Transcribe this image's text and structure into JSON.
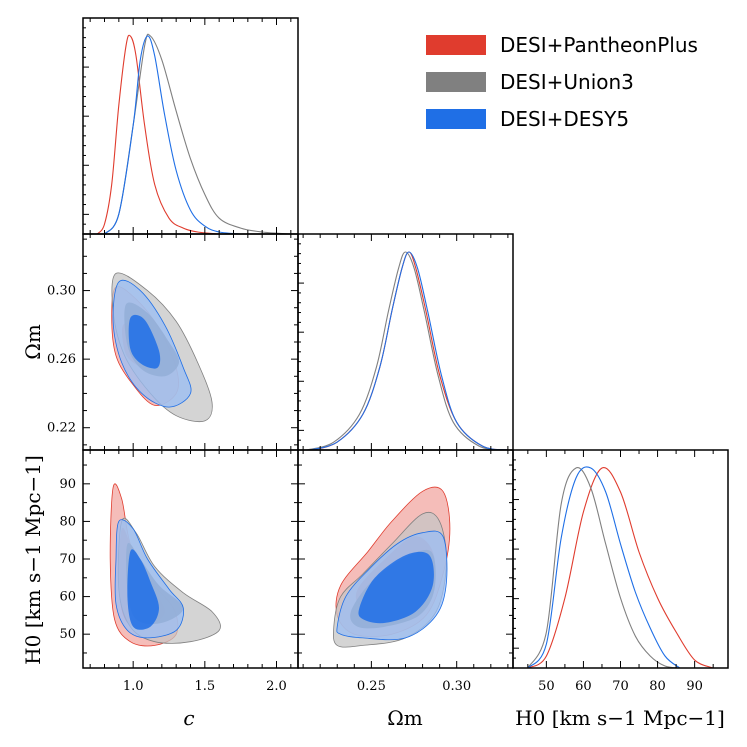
{
  "legend": [
    {
      "label": "DESI+PantheonPlus",
      "color": "#e03c2e"
    },
    {
      "label": "DESI+Union3",
      "color": "#808080"
    },
    {
      "label": "DESI+DESY5",
      "color": "#1f6fe6"
    }
  ],
  "chart_data": {
    "type": "triangle",
    "title": "",
    "parameters": [
      {
        "key": "c",
        "label": "c",
        "range": [
          0.65,
          2.15
        ],
        "ticks": [
          1.0,
          1.5,
          2.0
        ],
        "tick_labels": [
          "1.0",
          "1.5",
          "2.0"
        ]
      },
      {
        "key": "Om",
        "label": "Ωm",
        "range": [
          0.207,
          0.333
        ],
        "ticks": [
          0.22,
          0.26,
          0.3
        ],
        "tick_labels": [
          "0.22",
          "0.26",
          "0.30"
        ],
        "x_ticks": [
          0.25,
          0.3
        ],
        "x_tick_labels": [
          "0.25",
          "0.30"
        ]
      },
      {
        "key": "H0",
        "label": "H0 [km s−1 Mpc−1]",
        "range": [
          41,
          99
        ],
        "ticks": [
          50,
          60,
          70,
          80,
          90
        ],
        "tick_labels": [
          "50",
          "60",
          "70",
          "80",
          "90"
        ]
      }
    ],
    "axis_labels": {
      "x": [
        "c",
        "Ωm",
        "H0 [km s−1 Mpc−1]"
      ],
      "y": [
        "Ωm",
        "H0 [km s−1 Mpc−1]"
      ]
    },
    "series": [
      {
        "name": "DESI+PantheonPlus",
        "color": "#e03c2e",
        "marginals": {
          "c": {
            "x": [
              0.75,
              0.8,
              0.85,
              0.9,
              0.95,
              0.98,
              1.02,
              1.08,
              1.15,
              1.25,
              1.35,
              1.45,
              1.6
            ],
            "y": [
              0.0,
              0.05,
              0.25,
              0.65,
              0.95,
              1.0,
              0.9,
              0.55,
              0.25,
              0.08,
              0.03,
              0.01,
              0.0
            ]
          },
          "Om": {
            "x": [
              0.215,
              0.23,
              0.245,
              0.255,
              0.262,
              0.268,
              0.272,
              0.276,
              0.282,
              0.29,
              0.3,
              0.315,
              0.33
            ],
            "y": [
              0.0,
              0.04,
              0.18,
              0.42,
              0.7,
              0.92,
              1.0,
              0.92,
              0.7,
              0.38,
              0.14,
              0.02,
              0.0
            ]
          },
          "H0": {
            "x": [
              45,
              50,
              55,
              60,
              65,
              70,
              75,
              80,
              85,
              90,
              95
            ],
            "y": [
              0.0,
              0.06,
              0.35,
              0.78,
              1.0,
              0.88,
              0.58,
              0.35,
              0.18,
              0.04,
              0.0
            ]
          }
        },
        "contours": {
          "c-Om": {
            "outer": [
              [
                0.88,
                0.302
              ],
              [
                1.02,
                0.295
              ],
              [
                1.18,
                0.278
              ],
              [
                1.3,
                0.255
              ],
              [
                1.3,
                0.24
              ],
              [
                1.15,
                0.233
              ],
              [
                1.0,
                0.245
              ],
              [
                0.88,
                0.262
              ],
              [
                0.85,
                0.285
              ]
            ],
            "inner": [
              [
                0.93,
                0.28
              ],
              [
                1.05,
                0.279
              ],
              [
                1.12,
                0.265
              ],
              [
                1.1,
                0.255
              ],
              [
                1.0,
                0.258
              ],
              [
                0.94,
                0.265
              ]
            ]
          },
          "c-H0": {
            "outer": [
              [
                0.86,
                89
              ],
              [
                0.92,
                86
              ],
              [
                0.98,
                74
              ],
              [
                1.1,
                65
              ],
              [
                1.28,
                57
              ],
              [
                1.3,
                50
              ],
              [
                1.15,
                47
              ],
              [
                0.98,
                48
              ],
              [
                0.87,
                54
              ],
              [
                0.84,
                70
              ]
            ],
            "inner": [
              [
                0.92,
                78
              ],
              [
                1.0,
                72
              ],
              [
                1.12,
                63
              ],
              [
                1.22,
                56
              ],
              [
                1.1,
                52
              ],
              [
                0.96,
                53
              ],
              [
                0.9,
                62
              ]
            ]
          },
          "Om-H0": {
            "outer": [
              [
                0.232,
                63
              ],
              [
                0.248,
                72
              ],
              [
                0.262,
                80
              ],
              [
                0.28,
                88
              ],
              [
                0.292,
                88
              ],
              [
                0.296,
                78
              ],
              [
                0.292,
                66
              ],
              [
                0.282,
                55
              ],
              [
                0.262,
                50
              ],
              [
                0.24,
                50
              ],
              [
                0.23,
                55
              ]
            ],
            "inner": [
              [
                0.242,
                62
              ],
              [
                0.258,
                70
              ],
              [
                0.275,
                76
              ],
              [
                0.286,
                72
              ],
              [
                0.286,
                63
              ],
              [
                0.276,
                56
              ],
              [
                0.258,
                54
              ],
              [
                0.244,
                57
              ]
            ]
          }
        }
      },
      {
        "name": "DESI+Union3",
        "color": "#808080",
        "marginals": {
          "c": {
            "x": [
              0.8,
              0.9,
              1.0,
              1.08,
              1.12,
              1.2,
              1.3,
              1.4,
              1.5,
              1.6,
              1.75,
              1.9,
              2.1
            ],
            "y": [
              0.0,
              0.1,
              0.55,
              0.95,
              1.0,
              0.88,
              0.62,
              0.38,
              0.2,
              0.08,
              0.03,
              0.01,
              0.0
            ]
          },
          "Om": {
            "x": [
              0.212,
              0.228,
              0.243,
              0.253,
              0.26,
              0.266,
              0.27,
              0.275,
              0.281,
              0.289,
              0.298,
              0.313,
              0.328
            ],
            "y": [
              0.0,
              0.04,
              0.18,
              0.42,
              0.7,
              0.92,
              1.0,
              0.92,
              0.7,
              0.38,
              0.14,
              0.02,
              0.0
            ]
          },
          "H0": {
            "x": [
              45,
              50,
              54,
              58,
              62,
              66,
              70,
              74,
              78,
              82,
              86
            ],
            "y": [
              0.0,
              0.18,
              0.82,
              1.0,
              0.9,
              0.62,
              0.35,
              0.16,
              0.06,
              0.01,
              0.0
            ]
          }
        },
        "contours": {
          "c-Om": {
            "outer": [
              [
                0.88,
                0.31
              ],
              [
                1.1,
                0.3
              ],
              [
                1.3,
                0.282
              ],
              [
                1.45,
                0.258
              ],
              [
                1.55,
                0.235
              ],
              [
                1.5,
                0.224
              ],
              [
                1.3,
                0.227
              ],
              [
                1.12,
                0.24
              ],
              [
                0.94,
                0.262
              ],
              [
                0.86,
                0.288
              ]
            ],
            "inner": [
              [
                0.95,
                0.292
              ],
              [
                1.1,
                0.287
              ],
              [
                1.25,
                0.27
              ],
              [
                1.32,
                0.258
              ],
              [
                1.22,
                0.25
              ],
              [
                1.06,
                0.254
              ],
              [
                0.96,
                0.268
              ]
            ]
          },
          "c-H0": {
            "outer": [
              [
                0.92,
                80
              ],
              [
                1.02,
                77
              ],
              [
                1.15,
                68
              ],
              [
                1.35,
                61
              ],
              [
                1.55,
                56
              ],
              [
                1.6,
                51
              ],
              [
                1.4,
                48
              ],
              [
                1.15,
                48
              ],
              [
                0.98,
                52
              ],
              [
                0.9,
                62
              ]
            ],
            "inner": [
              [
                0.96,
                74
              ],
              [
                1.05,
                70
              ],
              [
                1.18,
                63
              ],
              [
                1.35,
                57
              ],
              [
                1.2,
                53
              ],
              [
                1.02,
                54
              ],
              [
                0.96,
                62
              ]
            ]
          },
          "Om-H0": {
            "outer": [
              [
                0.228,
                52
              ],
              [
                0.232,
                60
              ],
              [
                0.245,
                66
              ],
              [
                0.262,
                74
              ],
              [
                0.28,
                82
              ],
              [
                0.29,
                80
              ],
              [
                0.294,
                69
              ],
              [
                0.288,
                56
              ],
              [
                0.27,
                49
              ],
              [
                0.245,
                47
              ],
              [
                0.23,
                47
              ]
            ],
            "inner": [
              [
                0.238,
                56
              ],
              [
                0.25,
                64
              ],
              [
                0.268,
                70
              ],
              [
                0.285,
                72
              ],
              [
                0.287,
                62
              ],
              [
                0.278,
                55
              ],
              [
                0.258,
                52
              ],
              [
                0.242,
                52
              ]
            ]
          }
        }
      },
      {
        "name": "DESI+DESY5",
        "color": "#1f6fe6",
        "marginals": {
          "c": {
            "x": [
              0.8,
              0.9,
              1.0,
              1.05,
              1.1,
              1.15,
              1.22,
              1.3,
              1.4,
              1.5,
              1.6,
              1.75
            ],
            "y": [
              0.0,
              0.1,
              0.55,
              0.88,
              1.0,
              0.9,
              0.6,
              0.32,
              0.12,
              0.04,
              0.01,
              0.0
            ]
          },
          "Om": {
            "x": [
              0.214,
              0.23,
              0.245,
              0.255,
              0.262,
              0.268,
              0.272,
              0.277,
              0.283,
              0.291,
              0.3,
              0.315,
              0.33
            ],
            "y": [
              0.0,
              0.04,
              0.18,
              0.42,
              0.7,
              0.92,
              1.0,
              0.92,
              0.7,
              0.38,
              0.14,
              0.02,
              0.0
            ]
          },
          "H0": {
            "x": [
              45,
              50,
              54,
              58,
              62,
              66,
              70,
              74,
              78,
              82,
              86
            ],
            "y": [
              0.0,
              0.12,
              0.65,
              0.95,
              1.0,
              0.88,
              0.62,
              0.38,
              0.2,
              0.06,
              0.0
            ]
          }
        },
        "contours": {
          "c-Om": {
            "outer": [
              [
                0.9,
                0.305
              ],
              [
                1.05,
                0.3
              ],
              [
                1.22,
                0.28
              ],
              [
                1.35,
                0.255
              ],
              [
                1.4,
                0.24
              ],
              [
                1.25,
                0.232
              ],
              [
                1.06,
                0.24
              ],
              [
                0.92,
                0.258
              ],
              [
                0.86,
                0.282
              ]
            ],
            "inner": [
              [
                0.98,
                0.284
              ],
              [
                1.08,
                0.283
              ],
              [
                1.18,
                0.265
              ],
              [
                1.17,
                0.255
              ],
              [
                1.06,
                0.257
              ],
              [
                0.98,
                0.266
              ]
            ]
          },
          "c-H0": {
            "outer": [
              [
                0.9,
                80
              ],
              [
                1.0,
                78
              ],
              [
                1.1,
                70
              ],
              [
                1.25,
                62
              ],
              [
                1.35,
                57
              ],
              [
                1.3,
                51
              ],
              [
                1.1,
                49
              ],
              [
                0.96,
                51
              ],
              [
                0.88,
                58
              ],
              [
                0.88,
                70
              ]
            ],
            "inner": [
              [
                0.98,
                72
              ],
              [
                1.05,
                70
              ],
              [
                1.12,
                64
              ],
              [
                1.18,
                57
              ],
              [
                1.12,
                52
              ],
              [
                1.0,
                52
              ],
              [
                0.96,
                60
              ]
            ]
          },
          "Om-H0": {
            "outer": [
              [
                0.23,
                52
              ],
              [
                0.235,
                60
              ],
              [
                0.248,
                67
              ],
              [
                0.265,
                74
              ],
              [
                0.28,
                77
              ],
              [
                0.292,
                76
              ],
              [
                0.294,
                64
              ],
              [
                0.288,
                55
              ],
              [
                0.27,
                49
              ],
              [
                0.245,
                49
              ],
              [
                0.232,
                50
              ]
            ],
            "inner": [
              [
                0.243,
                57
              ],
              [
                0.252,
                65
              ],
              [
                0.27,
                71
              ],
              [
                0.284,
                71
              ],
              [
                0.286,
                63
              ],
              [
                0.276,
                56
              ],
              [
                0.258,
                53
              ],
              [
                0.245,
                54
              ]
            ]
          }
        }
      }
    ]
  }
}
